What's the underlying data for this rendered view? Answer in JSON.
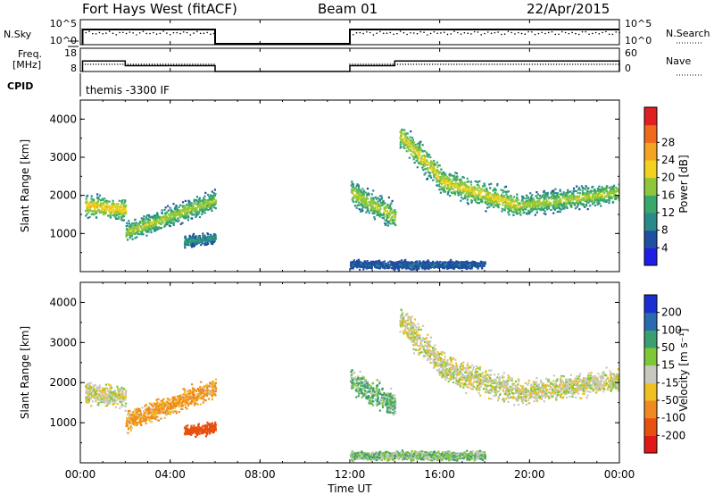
{
  "header": {
    "title": "Fort Hays West (fitACF)",
    "beam": "Beam 01",
    "date": "22/Apr/2015"
  },
  "top_panel": {
    "nsky_label": "N.Sky",
    "left_ticks": [
      "10^5",
      "10^0"
    ],
    "nsearch_label": "N.Search",
    "right_ticks": [
      "10^5",
      "10^0"
    ]
  },
  "freq_panel": {
    "label_line1": "Freq.",
    "label_line2": "[MHz]",
    "left_ticks": [
      "18",
      "8"
    ],
    "nave_label": "Nave",
    "right_ticks": [
      "60",
      "0"
    ]
  },
  "cpid": {
    "label": "CPID",
    "value": "themis -3300 IF"
  },
  "x_axis": {
    "title": "Time UT",
    "ticks": [
      "00:00",
      "04:00",
      "08:00",
      "12:00",
      "16:00",
      "20:00",
      "00:00"
    ]
  },
  "y_axis": {
    "title": "Slant Range [km]",
    "ticks": [
      "1000",
      "2000",
      "3000",
      "4000"
    ]
  },
  "power_colorbar": {
    "title": "Power [dB]",
    "labels": [
      "4",
      "8",
      "12",
      "16",
      "20",
      "24",
      "28"
    ],
    "colors": [
      "#1e1ee6",
      "#1f4fa0",
      "#2a8a8a",
      "#3aa86a",
      "#8ec83a",
      "#f2d21e",
      "#f5a323",
      "#ef6a1b",
      "#e02020"
    ]
  },
  "velocity_colorbar": {
    "title": "Velocity [m s⁻¹]",
    "labels": [
      "200",
      "100",
      "50",
      "15",
      "-15",
      "-50",
      "-100",
      "-200"
    ],
    "colors": [
      "#1a2fcf",
      "#2a6ab0",
      "#39a070",
      "#7cc836",
      "#c8c8c0",
      "#f0c020",
      "#f08a20",
      "#e85010",
      "#e01818"
    ]
  },
  "chart_data": [
    {
      "type": "line",
      "title": "N.Sky",
      "x_range_hours": [
        0,
        24
      ],
      "ylim": [
        "10^0",
        "10^5"
      ],
      "scale": "log",
      "segments": [
        {
          "x": [
            0.1,
            6.0
          ],
          "level": "high"
        },
        {
          "x": [
            12.0,
            24.0
          ],
          "level": "high"
        }
      ]
    },
    {
      "type": "line",
      "title": "Freq. [MHz]",
      "x_range_hours": [
        0,
        24
      ],
      "ylim": [
        8,
        18
      ],
      "segments": [
        {
          "x": [
            0.1,
            2.0
          ],
          "freq_mhz": 12.5
        },
        {
          "x": [
            2.0,
            6.0
          ],
          "freq_mhz": 10.5
        },
        {
          "x": [
            12.0,
            14.0
          ],
          "freq_mhz": 10.5
        },
        {
          "x": [
            14.0,
            24.0
          ],
          "freq_mhz": 12.5
        }
      ]
    },
    {
      "type": "heatmap",
      "title": "Power [dB]",
      "xlabel": "Time UT",
      "ylabel": "Slant Range [km]",
      "x_range_hours": [
        0,
        24
      ],
      "ylim": [
        0,
        4500
      ],
      "scatter_bands": [
        {
          "t0": 0.2,
          "t1": 2.0,
          "r0": 1750,
          "r1": 1650,
          "spread": 380,
          "power_db": 22
        },
        {
          "t0": 2.0,
          "t1": 6.0,
          "r0": 1050,
          "r1": 1900,
          "spread": 350,
          "power_db": 18
        },
        {
          "t0": 4.6,
          "t1": 6.0,
          "r0": 800,
          "r1": 900,
          "spread": 200,
          "power_db": 10
        },
        {
          "t0": 12.0,
          "t1": 14.0,
          "r0": 2100,
          "r1": 1450,
          "spread": 450,
          "power_db": 18
        },
        {
          "t0": 14.2,
          "t1": 16.0,
          "r0": 3600,
          "r1": 2500,
          "spread": 500,
          "power_db": 20
        },
        {
          "t0": 16.0,
          "t1": 19.5,
          "r0": 2400,
          "r1": 1750,
          "spread": 450,
          "power_db": 20
        },
        {
          "t0": 19.5,
          "t1": 24.0,
          "r0": 1750,
          "r1": 2100,
          "spread": 380,
          "power_db": 18
        },
        {
          "t0": 12.0,
          "t1": 18.0,
          "r0": 200,
          "r1": 200,
          "spread": 150,
          "power_db": 6
        }
      ]
    },
    {
      "type": "heatmap",
      "title": "Velocity [m s-1]",
      "xlabel": "Time UT",
      "ylabel": "Slant Range [km]",
      "x_range_hours": [
        0,
        24
      ],
      "ylim": [
        0,
        4500
      ],
      "scatter_bands": [
        {
          "t0": 0.2,
          "t1": 2.0,
          "r0": 1750,
          "r1": 1650,
          "spread": 380,
          "velocity": 0
        },
        {
          "t0": 2.0,
          "t1": 6.0,
          "r0": 1050,
          "r1": 1900,
          "spread": 350,
          "velocity": -40
        },
        {
          "t0": 4.6,
          "t1": 6.0,
          "r0": 800,
          "r1": 900,
          "spread": 200,
          "velocity": -120
        },
        {
          "t0": 12.0,
          "t1": 14.0,
          "r0": 2100,
          "r1": 1450,
          "spread": 450,
          "velocity": 30
        },
        {
          "t0": 14.2,
          "t1": 16.0,
          "r0": 3600,
          "r1": 2500,
          "spread": 500,
          "velocity": 0
        },
        {
          "t0": 16.0,
          "t1": 19.5,
          "r0": 2400,
          "r1": 1750,
          "spread": 450,
          "velocity": 0
        },
        {
          "t0": 19.5,
          "t1": 24.0,
          "r0": 1750,
          "r1": 2100,
          "spread": 380,
          "velocity": 0
        },
        {
          "t0": 12.0,
          "t1": 18.0,
          "r0": 200,
          "r1": 200,
          "spread": 150,
          "velocity": 20
        }
      ]
    }
  ]
}
